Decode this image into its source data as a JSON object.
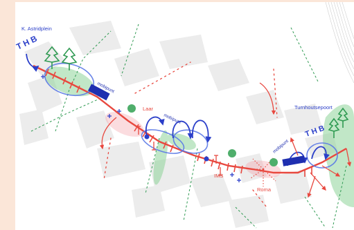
{
  "map": {
    "labels": {
      "k_astridplein": "K. Astridplein",
      "laar": "Laar",
      "ims": "IMS",
      "roma": "Roma",
      "turnhoutsepoort": "Turnhoutsepoort",
      "mobipunt_1": "mobipunt",
      "mobipunt_2": "mobipunt",
      "mobipunt_3": "mobipunt",
      "thb_1": "T H B",
      "thb_2": "T H B"
    },
    "colors": {
      "background": "#fbe6d8",
      "paper": "#ffffff",
      "buildings": "#ececec",
      "route_red": "#e8483f",
      "blue_ink": "#2b3fc9",
      "green_zone": "#8fd39a",
      "green_ink": "#2f9a52",
      "pink": "#f29aa3"
    },
    "icons": [
      "tree-icon",
      "bus-icon",
      "arrow-icon",
      "stop-marker-icon"
    ]
  }
}
